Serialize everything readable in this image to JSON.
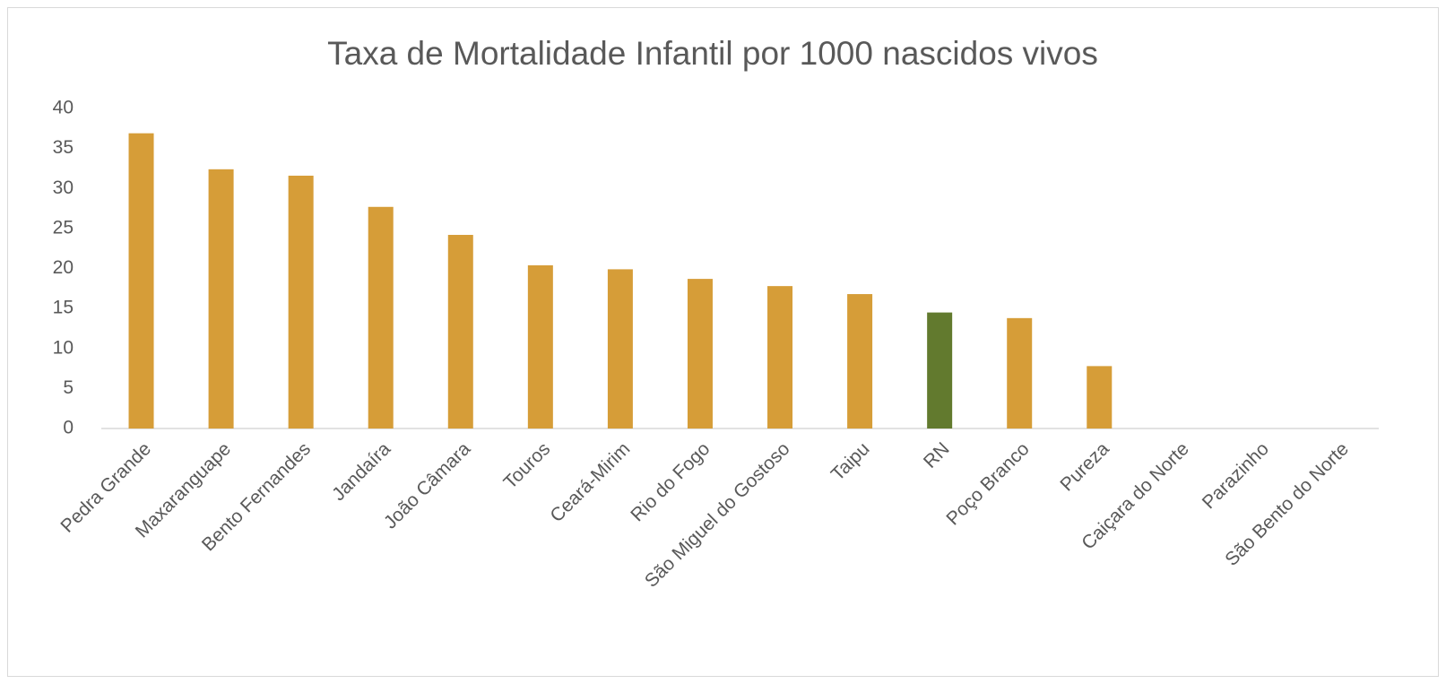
{
  "chart_data": {
    "type": "bar",
    "title": "Taxa de Mortalidade Infantil por 1000 nascidos vivos",
    "categories": [
      "Pedra Grande",
      "Maxaranguape",
      "Bento Fernandes",
      "Jandaíra",
      "João Câmara",
      "Touros",
      "Ceará-Mirim",
      "Rio do Fogo",
      "São Miguel do Gostoso",
      "Taipu",
      "RN",
      "Poço Branco",
      "Pureza",
      "Caiçara do Norte",
      "Parazinho",
      "São Bento do Norte"
    ],
    "values": [
      36.9,
      32.4,
      31.6,
      27.7,
      24.2,
      20.4,
      19.9,
      18.7,
      17.8,
      16.8,
      14.5,
      13.8,
      7.8,
      0,
      0,
      0
    ],
    "colors": [
      "#d69d38",
      "#d69d38",
      "#d69d38",
      "#d69d38",
      "#d69d38",
      "#d69d38",
      "#d69d38",
      "#d69d38",
      "#d69d38",
      "#d69d38",
      "#627a2e",
      "#d69d38",
      "#d69d38",
      "#d69d38",
      "#d69d38",
      "#d69d38"
    ],
    "ylim": [
      0,
      40
    ],
    "yticks": [
      0,
      5,
      10,
      15,
      20,
      25,
      30,
      35,
      40
    ],
    "grid": false
  }
}
